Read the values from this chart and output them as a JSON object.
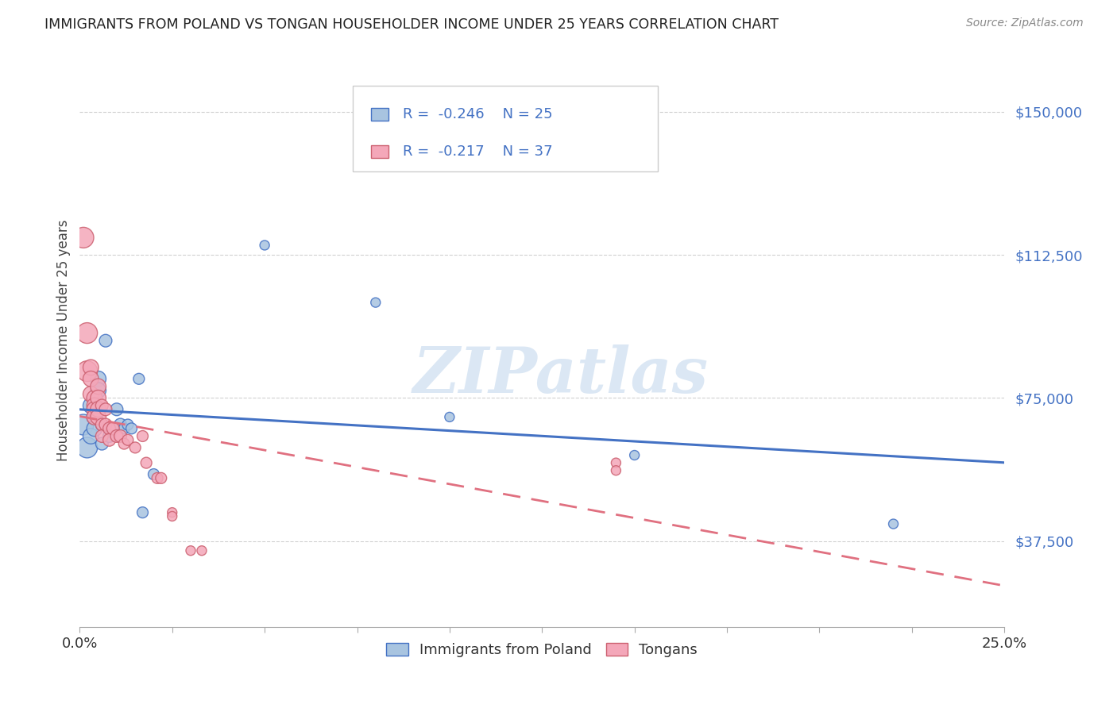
{
  "title": "IMMIGRANTS FROM POLAND VS TONGAN HOUSEHOLDER INCOME UNDER 25 YEARS CORRELATION CHART",
  "source": "Source: ZipAtlas.com",
  "ylabel": "Householder Income Under 25 years",
  "legend_label1": "Immigrants from Poland",
  "legend_label2": "Tongans",
  "r1": "-0.246",
  "n1": "25",
  "r2": "-0.217",
  "n2": "37",
  "ytick_labels": [
    "$37,500",
    "$75,000",
    "$112,500",
    "$150,000"
  ],
  "ytick_values": [
    37500,
    75000,
    112500,
    150000
  ],
  "ymin": 15000,
  "ymax": 165000,
  "xmin": 0.0,
  "xmax": 0.25,
  "poland_color": "#a8c4e0",
  "tongan_color": "#f4a7b9",
  "poland_line_color": "#4472c4",
  "tongan_line_color": "#e07080",
  "background_color": "#ffffff",
  "grid_color": "#d0d0d0",
  "watermark": "ZIPatlas",
  "poland_points": [
    [
      0.001,
      68000
    ],
    [
      0.002,
      62000
    ],
    [
      0.003,
      65000
    ],
    [
      0.003,
      73000
    ],
    [
      0.004,
      70000
    ],
    [
      0.004,
      67000
    ],
    [
      0.005,
      80000
    ],
    [
      0.005,
      77000
    ],
    [
      0.006,
      68000
    ],
    [
      0.006,
      63000
    ],
    [
      0.007,
      90000
    ],
    [
      0.008,
      65000
    ],
    [
      0.01,
      72000
    ],
    [
      0.011,
      68000
    ],
    [
      0.012,
      67000
    ],
    [
      0.013,
      68000
    ],
    [
      0.014,
      67000
    ],
    [
      0.016,
      80000
    ],
    [
      0.017,
      45000
    ],
    [
      0.02,
      55000
    ],
    [
      0.05,
      115000
    ],
    [
      0.08,
      100000
    ],
    [
      0.1,
      70000
    ],
    [
      0.15,
      60000
    ],
    [
      0.22,
      42000
    ]
  ],
  "tongan_points": [
    [
      0.001,
      117000
    ],
    [
      0.002,
      92000
    ],
    [
      0.002,
      82000
    ],
    [
      0.003,
      83000
    ],
    [
      0.003,
      80000
    ],
    [
      0.003,
      76000
    ],
    [
      0.004,
      75000
    ],
    [
      0.004,
      73000
    ],
    [
      0.004,
      72000
    ],
    [
      0.004,
      70000
    ],
    [
      0.005,
      78000
    ],
    [
      0.005,
      75000
    ],
    [
      0.005,
      72000
    ],
    [
      0.005,
      70000
    ],
    [
      0.006,
      73000
    ],
    [
      0.006,
      68000
    ],
    [
      0.006,
      65000
    ],
    [
      0.007,
      72000
    ],
    [
      0.007,
      68000
    ],
    [
      0.008,
      67000
    ],
    [
      0.008,
      64000
    ],
    [
      0.009,
      67000
    ],
    [
      0.01,
      65000
    ],
    [
      0.011,
      65000
    ],
    [
      0.012,
      63000
    ],
    [
      0.013,
      64000
    ],
    [
      0.015,
      62000
    ],
    [
      0.017,
      65000
    ],
    [
      0.018,
      58000
    ],
    [
      0.021,
      54000
    ],
    [
      0.022,
      54000
    ],
    [
      0.025,
      45000
    ],
    [
      0.025,
      44000
    ],
    [
      0.03,
      35000
    ],
    [
      0.033,
      35000
    ],
    [
      0.145,
      58000
    ],
    [
      0.145,
      56000
    ]
  ]
}
